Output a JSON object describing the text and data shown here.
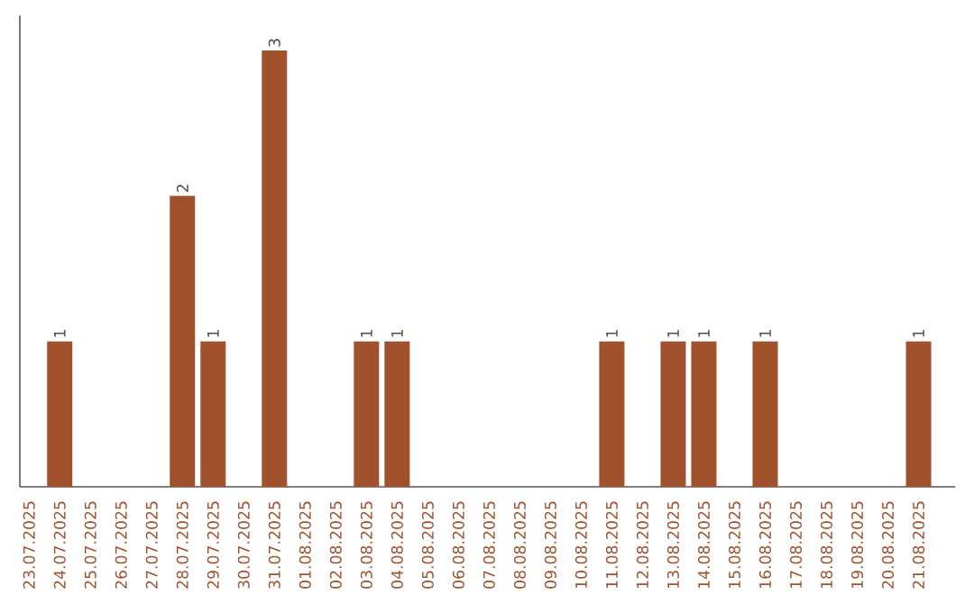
{
  "chart_data": {
    "type": "bar",
    "categories": [
      "23.07.2025",
      "24.07.2025",
      "25.07.2025",
      "26.07.2025",
      "27.07.2025",
      "28.07.2025",
      "29.07.2025",
      "30.07.2025",
      "31.07.2025",
      "01.08.2025",
      "02.08.2025",
      "03.08.2025",
      "04.08.2025",
      "05.08.2025",
      "06.08.2025",
      "07.08.2025",
      "08.08.2025",
      "09.08.2025",
      "10.08.2025",
      "11.08.2025",
      "12.08.2025",
      "13.08.2025",
      "14.08.2025",
      "15.08.2025",
      "16.08.2025",
      "17.08.2025",
      "18.08.2025",
      "19.08.2025",
      "20.08.2025",
      "21.08.2025"
    ],
    "values": [
      0,
      1,
      0,
      0,
      0,
      2,
      1,
      0,
      3,
      0,
      0,
      1,
      1,
      0,
      0,
      0,
      0,
      0,
      0,
      1,
      0,
      1,
      1,
      0,
      1,
      0,
      0,
      0,
      0,
      1
    ],
    "value_labels": [
      null,
      "1",
      null,
      null,
      null,
      "2",
      "1",
      null,
      "3",
      null,
      null,
      "1",
      "1",
      null,
      null,
      null,
      null,
      null,
      null,
      "1",
      null,
      "1",
      "1",
      null,
      "1",
      null,
      null,
      null,
      null,
      "1"
    ],
    "color": "#a0522d"
  }
}
